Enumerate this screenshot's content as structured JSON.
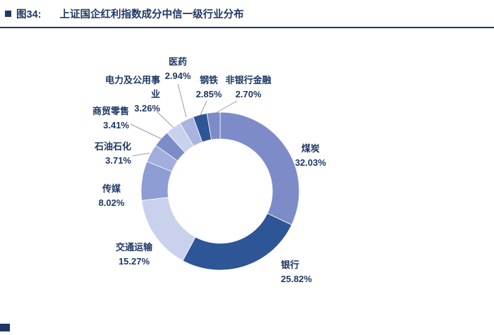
{
  "header": {
    "figure_label": "图34:",
    "title": "上证国企红利指数成分中信一级行业分布"
  },
  "chart_data": {
    "type": "pie",
    "subtype": "donut",
    "title": "上证国企红利指数成分中信一级行业分布",
    "categories": [
      "煤炭",
      "银行",
      "交通运输",
      "传媒",
      "石油石化",
      "商贸零售",
      "电力及公用事业",
      "医药",
      "钢铁",
      "非银行金融"
    ],
    "values": [
      32.03,
      25.82,
      15.27,
      8.02,
      3.71,
      3.41,
      3.26,
      2.94,
      2.85,
      2.7
    ],
    "unit": "%",
    "labels_shown": [
      "煤炭 32.03%",
      "银行 25.82%",
      "交通运输 15.27%",
      "传媒 8.02%",
      "石油石化 3.71%",
      "商贸零售 3.41%",
      "电力及公用事业 3.26%",
      "医药 2.94%",
      "钢铁 2.85%",
      "非银行金融 2.70%"
    ],
    "colors": [
      "#7D8CC8",
      "#2E5596",
      "#C9D1ED",
      "#8E9DD4",
      "#A2AFDC",
      "#7D8CC8",
      "#C9D1ED",
      "#A9B5E0",
      "#2E5596",
      "#7D8CC8"
    ],
    "style": {
      "label_color": "#1F3864",
      "leader_color": "#9B9B9B",
      "accent": "#1F3864",
      "background": "#FFFFFF"
    },
    "legend": "none",
    "start_angle_deg": 0,
    "direction": "clockwise"
  }
}
